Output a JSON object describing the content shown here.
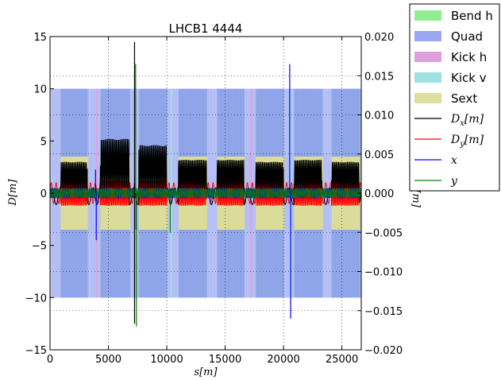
{
  "chart_data": {
    "type": "line",
    "title": "LHCB1 4444",
    "xlabel": "s[m]",
    "ylabel": "D[m]",
    "y2label": "co[m]",
    "xlim": [
      0,
      26658
    ],
    "ylim": [
      -15,
      15
    ],
    "y2lim": [
      -0.02,
      0.02
    ],
    "xticks": [
      "0",
      "5000",
      "10000",
      "15000",
      "20000",
      "25000"
    ],
    "xtick_values": [
      0,
      5000,
      10000,
      15000,
      20000,
      25000
    ],
    "yticks": [
      "−15",
      "−10",
      "−5",
      "0",
      "5",
      "10",
      "15"
    ],
    "ytick_values": [
      -15,
      -10,
      -5,
      0,
      5,
      10,
      15
    ],
    "y2ticks": [
      "−0.020",
      "−0.015",
      "−0.010",
      "−0.005",
      "0.000",
      "0.005",
      "0.010",
      "0.015",
      "0.020"
    ],
    "y2tick_values": [
      -0.02,
      -0.015,
      -0.01,
      -0.005,
      0,
      0.005,
      0.01,
      0.015,
      0.02
    ],
    "grid": true,
    "legend_placement": "outside-top-right",
    "legend": [
      {
        "label": "Bend h",
        "kind": "patch",
        "color": "#90ee90"
      },
      {
        "label": "Quad",
        "kind": "patch",
        "color": "#9aa8f2"
      },
      {
        "label": "Kick h",
        "kind": "patch",
        "color": "#dda0dd"
      },
      {
        "label": "Kick v",
        "kind": "patch",
        "color": "#9ee0df"
      },
      {
        "label": "Sext",
        "kind": "patch",
        "color": "#dede9e"
      },
      {
        "label": "Dx[m]",
        "kind": "line",
        "color": "#000000",
        "math_base": "D",
        "math_sub": "x",
        "math_unit": "[m]"
      },
      {
        "label": "Dy[m]",
        "kind": "line",
        "color": "#ff0000",
        "math_base": "D",
        "math_sub": "y",
        "math_unit": "[m]"
      },
      {
        "label": "x",
        "kind": "line",
        "color": "#0000ff",
        "math_base": "x",
        "math_sub": "",
        "math_unit": ""
      },
      {
        "label": "y",
        "kind": "line",
        "color": "#008000",
        "math_base": "y",
        "math_sub": "",
        "math_unit": ""
      }
    ],
    "arcs": [
      {
        "start": 900,
        "end": 3200,
        "dx_amp": 2.6
      },
      {
        "start": 4300,
        "end": 6800,
        "dx_amp": 4.8
      },
      {
        "start": 7600,
        "end": 10000,
        "dx_amp": 4.2
      },
      {
        "start": 11000,
        "end": 13400,
        "dx_amp": 2.8
      },
      {
        "start": 14300,
        "end": 16600,
        "dx_amp": 2.8
      },
      {
        "start": 17600,
        "end": 20000,
        "dx_amp": 2.6
      },
      {
        "start": 20900,
        "end": 23300,
        "dx_amp": 2.8
      },
      {
        "start": 24100,
        "end": 26500,
        "dx_amp": 2.6
      }
    ],
    "elements": {
      "quad_height": 10,
      "bend_height": 10,
      "sext_height": 3.5,
      "quad_cell_spacing": 107,
      "ir_positions": [
        0,
        3332,
        6664,
        9997,
        13329,
        16661,
        19994,
        23326
      ],
      "kick_h_positions": [
        3920,
        17150
      ],
      "kick_v_positions": [
        10320,
        20530
      ]
    },
    "dispersion_events": [
      {
        "s": 7240,
        "dx": 14.5,
        "dx_neg": -12.5
      },
      {
        "s": 7370,
        "dx": -3.5
      }
    ],
    "orbit_events": [
      {
        "series": "y",
        "s": 7330,
        "co": 0.0165
      },
      {
        "series": "y",
        "s": 7400,
        "co": -0.017
      },
      {
        "series": "x",
        "s": 20530,
        "co": 0.0165
      },
      {
        "series": "x",
        "s": 20610,
        "co": -0.016
      },
      {
        "series": "y",
        "s": 10300,
        "co": -0.005
      },
      {
        "series": "x",
        "s": 3900,
        "co": 0.003
      },
      {
        "series": "x",
        "s": 3960,
        "co": -0.006
      }
    ]
  }
}
